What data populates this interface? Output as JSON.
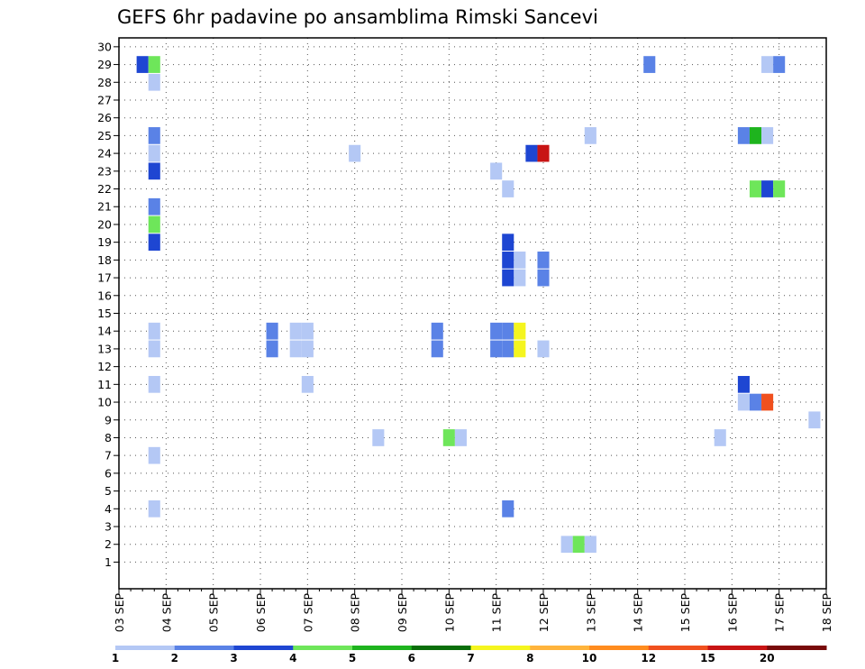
{
  "chart_data": {
    "type": "heatmap",
    "title": "GEFS 6hr padavine po ansamblima Rimski Sancevi",
    "xlabel": "",
    "ylabel": "",
    "x_tick_labels": [
      "03 SEP",
      "04 SEP",
      "05 SEP",
      "06 SEP",
      "07 SEP",
      "08 SEP",
      "09 SEP",
      "10 SEP",
      "11 SEP",
      "12 SEP",
      "13 SEP",
      "14 SEP",
      "15 SEP",
      "16 SEP",
      "17 SEP",
      "18 SEP"
    ],
    "y_tick_labels": [
      "1",
      "2",
      "3",
      "4",
      "5",
      "6",
      "7",
      "8",
      "9",
      "10",
      "11",
      "12",
      "13",
      "14",
      "15",
      "16",
      "17",
      "18",
      "19",
      "20",
      "21",
      "22",
      "23",
      "24",
      "25",
      "26",
      "27",
      "28",
      "29",
      "30"
    ],
    "xlim_steps": [
      0,
      60
    ],
    "ylim": [
      0,
      30
    ],
    "steps_per_day": 4,
    "grid": true,
    "colorbar": {
      "colors": [
        "#b4c8f5",
        "#5a82e6",
        "#1e46d2",
        "#6ee65a",
        "#1eb41e",
        "#0a6e0a",
        "#f5f51e",
        "#ffb43c",
        "#ff8c1e",
        "#f0501e",
        "#c81414",
        "#780a0a"
      ],
      "labels": [
        "1",
        "2",
        "3",
        "4",
        "5",
        "6",
        "7",
        "8",
        "10",
        "12",
        "15",
        "20"
      ]
    },
    "cells": [
      {
        "member": 29,
        "step": 2,
        "color": "#1e46d2"
      },
      {
        "member": 29,
        "step": 3,
        "color": "#6ee65a"
      },
      {
        "member": 29,
        "step": 45,
        "color": "#5a82e6"
      },
      {
        "member": 29,
        "step": 55,
        "color": "#b4c8f5"
      },
      {
        "member": 29,
        "step": 56,
        "color": "#5a82e6"
      },
      {
        "member": 28,
        "step": 3,
        "color": "#b4c8f5"
      },
      {
        "member": 25,
        "step": 3,
        "color": "#5a82e6"
      },
      {
        "member": 25,
        "step": 40,
        "color": "#b4c8f5"
      },
      {
        "member": 25,
        "step": 53,
        "color": "#5a82e6"
      },
      {
        "member": 25,
        "step": 54,
        "color": "#1eb41e"
      },
      {
        "member": 25,
        "step": 55,
        "color": "#b4c8f5"
      },
      {
        "member": 24,
        "step": 3,
        "color": "#b4c8f5"
      },
      {
        "member": 24,
        "step": 20,
        "color": "#b4c8f5"
      },
      {
        "member": 24,
        "step": 35,
        "color": "#1e46d2"
      },
      {
        "member": 24,
        "step": 36,
        "color": "#c81414"
      },
      {
        "member": 23,
        "step": 3,
        "color": "#1e46d2"
      },
      {
        "member": 23,
        "step": 32,
        "color": "#b4c8f5"
      },
      {
        "member": 22,
        "step": 33,
        "color": "#b4c8f5"
      },
      {
        "member": 22,
        "step": 54,
        "color": "#6ee65a"
      },
      {
        "member": 22,
        "step": 55,
        "color": "#1e46d2"
      },
      {
        "member": 22,
        "step": 56,
        "color": "#6ee65a"
      },
      {
        "member": 21,
        "step": 3,
        "color": "#5a82e6"
      },
      {
        "member": 20,
        "step": 3,
        "color": "#6ee65a"
      },
      {
        "member": 19,
        "step": 3,
        "color": "#1e46d2"
      },
      {
        "member": 19,
        "step": 33,
        "color": "#1e46d2"
      },
      {
        "member": 18,
        "step": 33,
        "color": "#1e46d2"
      },
      {
        "member": 18,
        "step": 34,
        "color": "#b4c8f5"
      },
      {
        "member": 18,
        "step": 36,
        "color": "#5a82e6"
      },
      {
        "member": 17,
        "step": 33,
        "color": "#1e46d2"
      },
      {
        "member": 17,
        "step": 34,
        "color": "#b4c8f5"
      },
      {
        "member": 17,
        "step": 36,
        "color": "#5a82e6"
      },
      {
        "member": 14,
        "step": 3,
        "color": "#b4c8f5"
      },
      {
        "member": 14,
        "step": 13,
        "color": "#5a82e6"
      },
      {
        "member": 14,
        "step": 15,
        "color": "#b4c8f5"
      },
      {
        "member": 14,
        "step": 16,
        "color": "#b4c8f5"
      },
      {
        "member": 14,
        "step": 27,
        "color": "#5a82e6"
      },
      {
        "member": 14,
        "step": 32,
        "color": "#5a82e6"
      },
      {
        "member": 14,
        "step": 33,
        "color": "#5a82e6"
      },
      {
        "member": 14,
        "step": 34,
        "color": "#f5f51e"
      },
      {
        "member": 13,
        "step": 3,
        "color": "#b4c8f5"
      },
      {
        "member": 13,
        "step": 13,
        "color": "#5a82e6"
      },
      {
        "member": 13,
        "step": 15,
        "color": "#b4c8f5"
      },
      {
        "member": 13,
        "step": 16,
        "color": "#b4c8f5"
      },
      {
        "member": 13,
        "step": 27,
        "color": "#5a82e6"
      },
      {
        "member": 13,
        "step": 32,
        "color": "#5a82e6"
      },
      {
        "member": 13,
        "step": 33,
        "color": "#5a82e6"
      },
      {
        "member": 13,
        "step": 34,
        "color": "#f5f51e"
      },
      {
        "member": 13,
        "step": 36,
        "color": "#b4c8f5"
      },
      {
        "member": 11,
        "step": 3,
        "color": "#b4c8f5"
      },
      {
        "member": 11,
        "step": 16,
        "color": "#b4c8f5"
      },
      {
        "member": 11,
        "step": 53,
        "color": "#1e46d2"
      },
      {
        "member": 10,
        "step": 53,
        "color": "#b4c8f5"
      },
      {
        "member": 10,
        "step": 54,
        "color": "#5a82e6"
      },
      {
        "member": 10,
        "step": 55,
        "color": "#f0501e"
      },
      {
        "member": 9,
        "step": 59,
        "color": "#b4c8f5"
      },
      {
        "member": 8,
        "step": 22,
        "color": "#b4c8f5"
      },
      {
        "member": 8,
        "step": 28,
        "color": "#6ee65a"
      },
      {
        "member": 8,
        "step": 29,
        "color": "#b4c8f5"
      },
      {
        "member": 8,
        "step": 51,
        "color": "#b4c8f5"
      },
      {
        "member": 7,
        "step": 3,
        "color": "#b4c8f5"
      },
      {
        "member": 4,
        "step": 3,
        "color": "#b4c8f5"
      },
      {
        "member": 4,
        "step": 33,
        "color": "#5a82e6"
      },
      {
        "member": 2,
        "step": 38,
        "color": "#b4c8f5"
      },
      {
        "member": 2,
        "step": 39,
        "color": "#6ee65a"
      },
      {
        "member": 2,
        "step": 40,
        "color": "#b4c8f5"
      }
    ]
  }
}
